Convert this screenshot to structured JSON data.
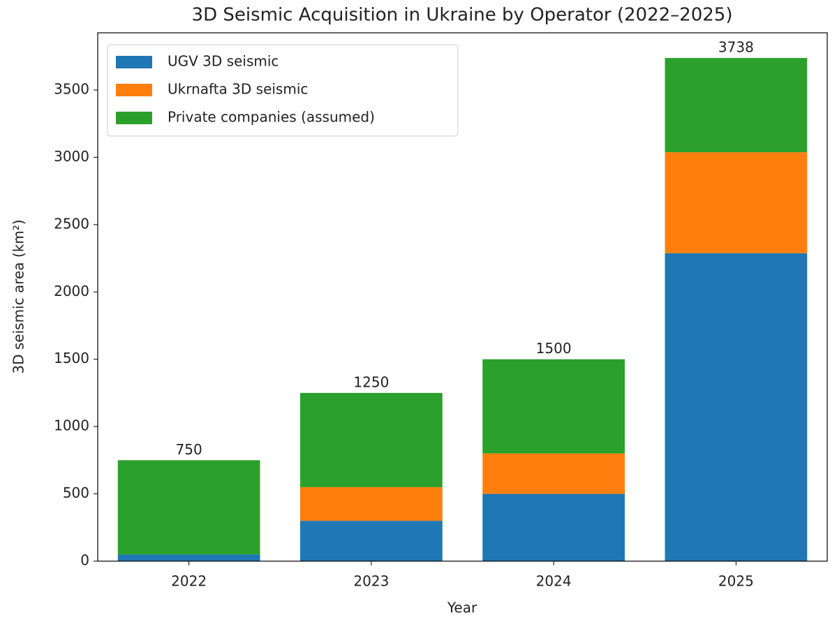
{
  "chart_data": {
    "type": "stacked_bar",
    "title": "3D Seismic Acquisition in Ukraine by Operator (2022–2025)",
    "x_label": "Year",
    "y_label": "3D seismic area (km²)",
    "categories": [
      "2022",
      "2023",
      "2024",
      "2025"
    ],
    "series": [
      {
        "name": "UGV 3D seismic",
        "color": "#1f77b4",
        "values": [
          50,
          300,
          500,
          2288
        ]
      },
      {
        "name": "Ukrnafta 3D seismic",
        "color": "#ff7f0e",
        "values": [
          0,
          250,
          300,
          750
        ]
      },
      {
        "name": "Private companies (assumed)",
        "color": "#2ca02c",
        "values": [
          700,
          700,
          700,
          700
        ]
      }
    ],
    "totals": [
      750,
      1250,
      1500,
      3738
    ],
    "ylim": [
      0,
      3925
    ],
    "yticks": [
      0,
      500,
      1000,
      1500,
      2000,
      2500,
      3000,
      3500
    ],
    "grid": false,
    "legend": "upper left"
  }
}
